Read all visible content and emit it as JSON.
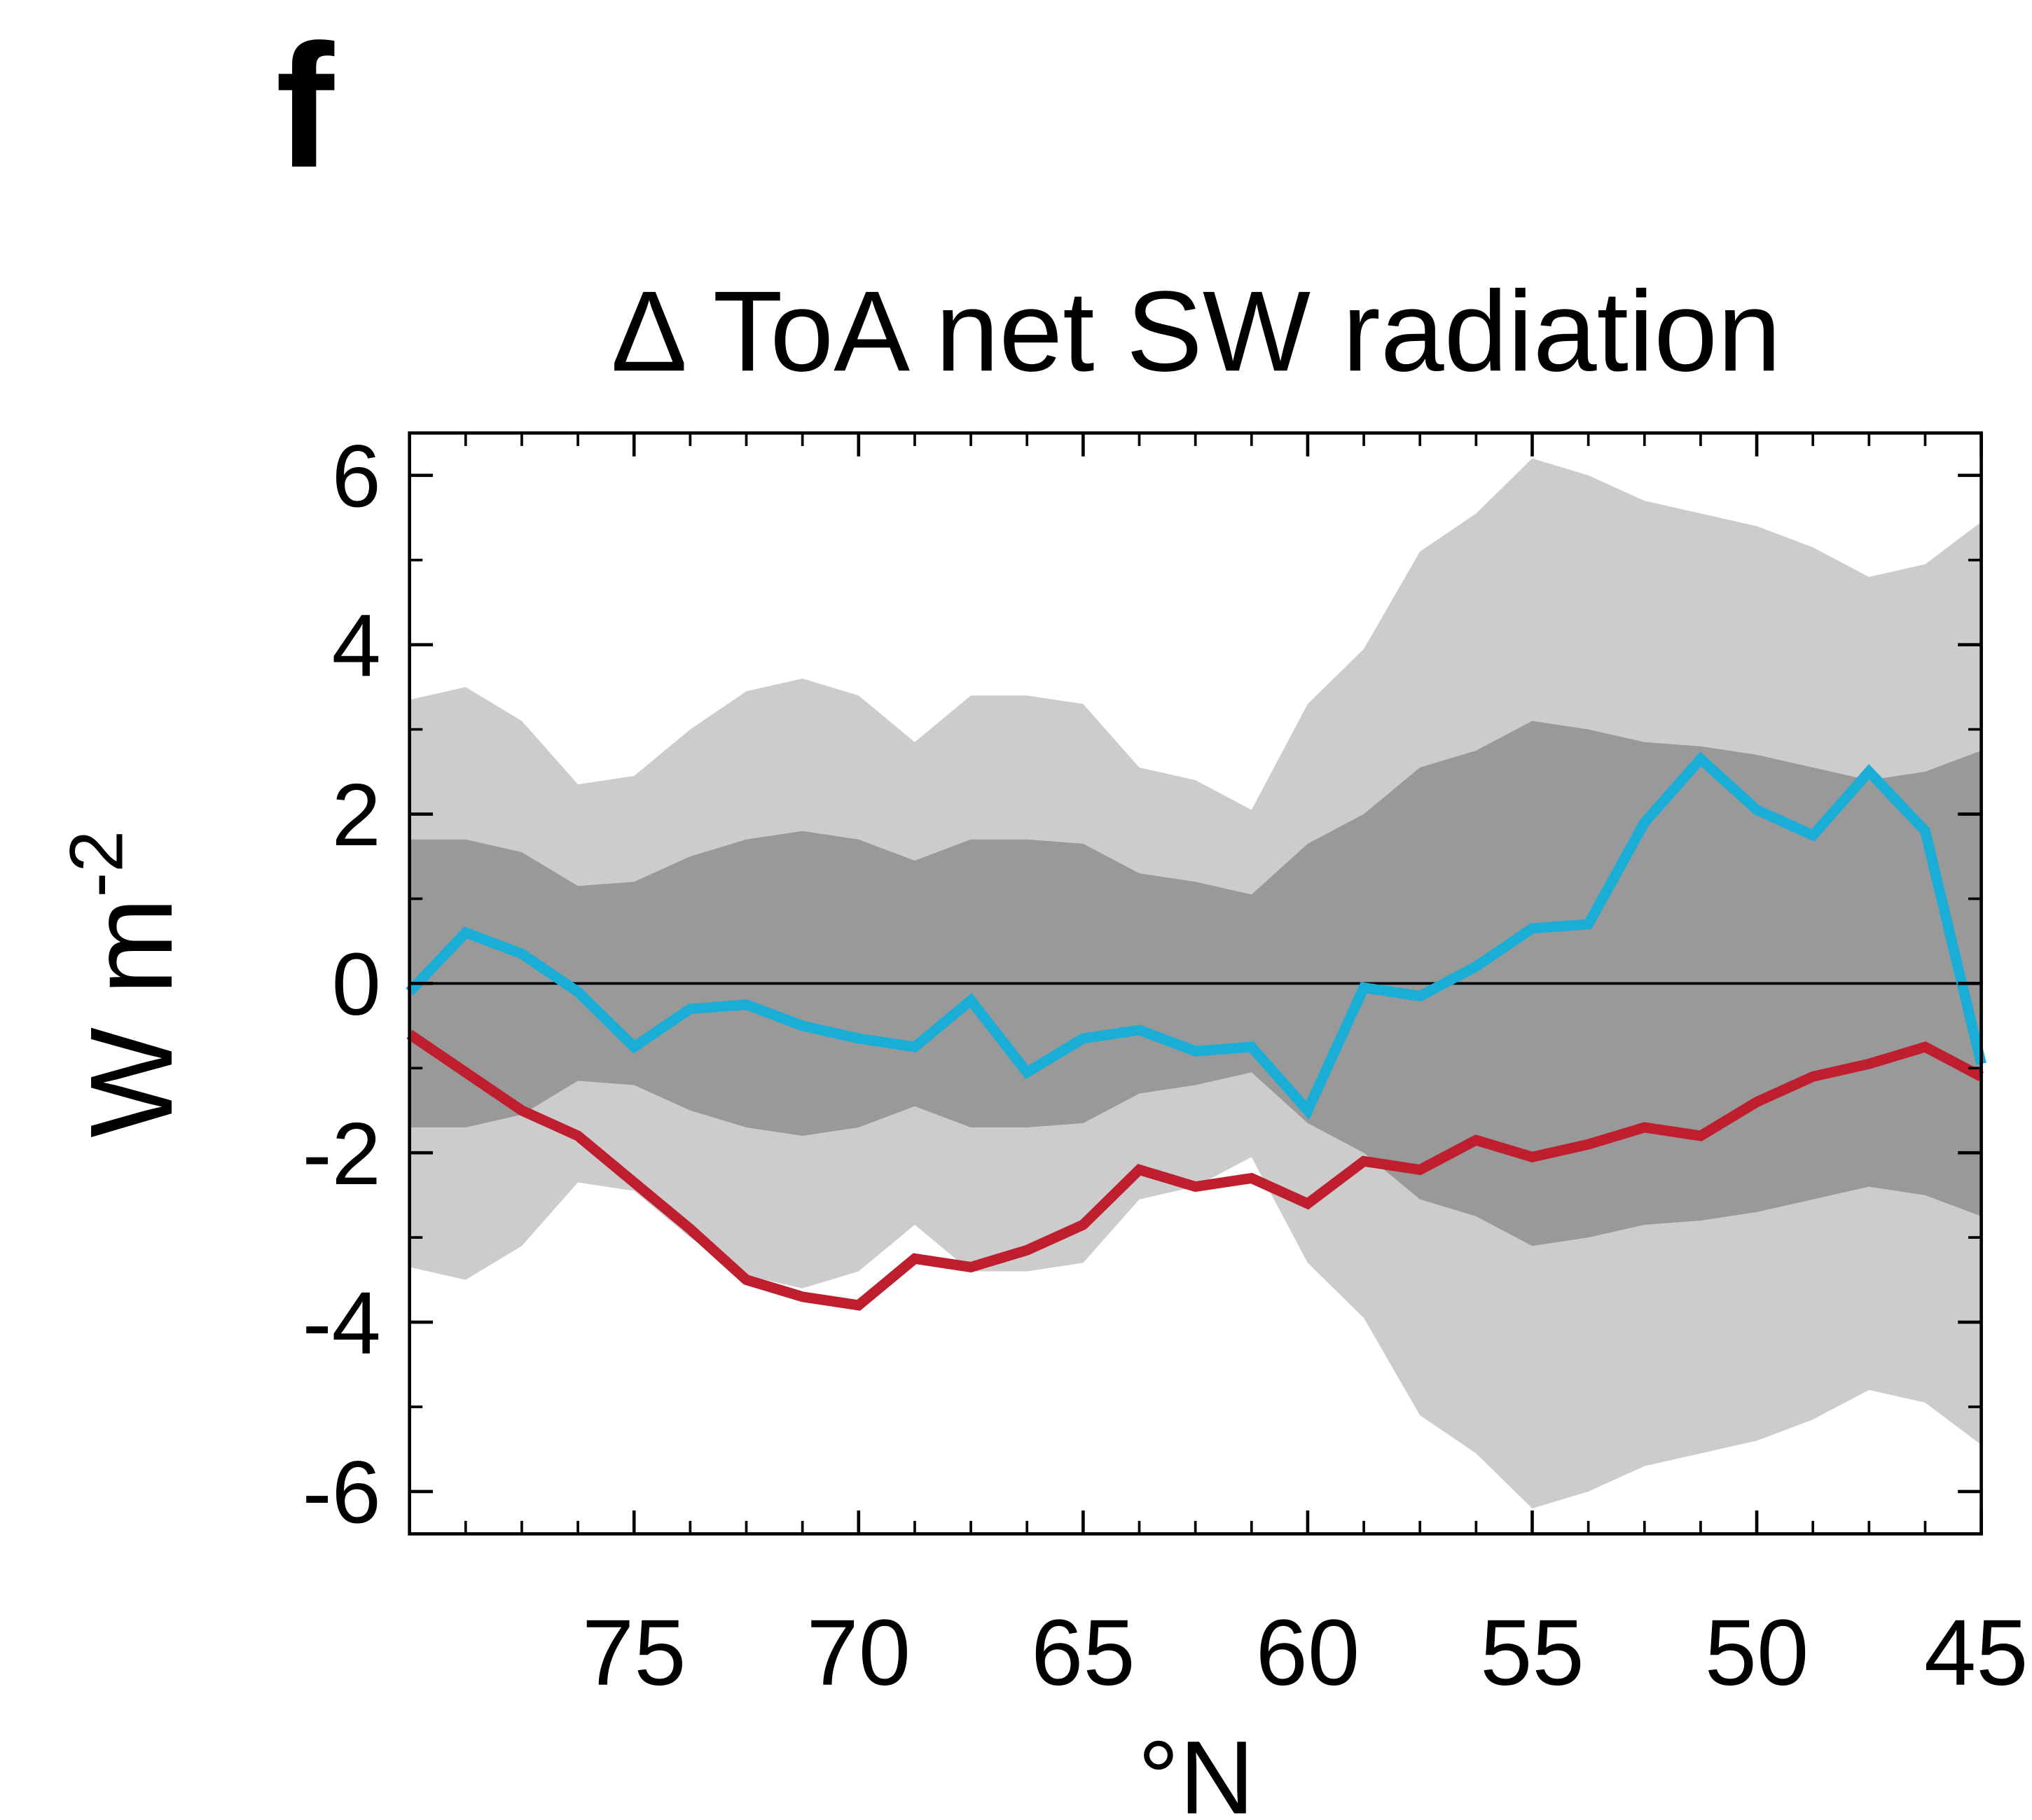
{
  "chart_data": {
    "type": "line",
    "panel_label": "f",
    "title": "Δ ToA net SW radiation",
    "ylabel": "W m",
    "ylabel_sup": "-2",
    "xlabel": "°N",
    "x": [
      80,
      78.75,
      77.5,
      76.25,
      75,
      73.75,
      72.5,
      71.25,
      70,
      68.75,
      67.5,
      66.25,
      65,
      63.75,
      62.5,
      61.25,
      60,
      58.75,
      57.5,
      56.25,
      55,
      53.75,
      52.5,
      51.25,
      50,
      48.75,
      47.5,
      46.25,
      45
    ],
    "xlim": [
      80,
      45
    ],
    "xticks": [
      75,
      70,
      65,
      60,
      55,
      50,
      45
    ],
    "ylim": [
      -6.5,
      6.5
    ],
    "yticks": [
      6,
      4,
      2,
      0,
      -2,
      -4,
      -6
    ],
    "yminorticks": [
      5,
      3,
      1,
      -1,
      -3,
      -5
    ],
    "hline": 0,
    "bands": [
      {
        "color": "#cccccc",
        "upper": [
          3.35,
          3.5,
          3.1,
          2.35,
          2.45,
          3.0,
          3.45,
          3.6,
          3.4,
          2.85,
          3.4,
          3.4,
          3.3,
          2.55,
          2.4,
          2.05,
          3.3,
          3.95,
          5.1,
          5.55,
          6.2,
          6.0,
          5.7,
          5.55,
          5.4,
          5.15,
          4.8,
          4.95,
          5.45
        ],
        "lower": [
          -3.35,
          -3.5,
          -3.1,
          -2.35,
          -2.45,
          -3.0,
          -3.45,
          -3.6,
          -3.4,
          -2.85,
          -3.4,
          -3.4,
          -3.3,
          -2.55,
          -2.4,
          -2.05,
          -3.3,
          -3.95,
          -5.1,
          -5.55,
          -6.2,
          -6.0,
          -5.7,
          -5.55,
          -5.4,
          -5.15,
          -4.8,
          -4.95,
          -5.45
        ]
      },
      {
        "color": "#999999",
        "upper": [
          1.7,
          1.7,
          1.55,
          1.15,
          1.2,
          1.5,
          1.7,
          1.8,
          1.7,
          1.45,
          1.7,
          1.7,
          1.65,
          1.3,
          1.2,
          1.05,
          1.65,
          2.0,
          2.55,
          2.75,
          3.1,
          3.0,
          2.85,
          2.8,
          2.7,
          2.55,
          2.4,
          2.5,
          2.75
        ],
        "lower": [
          -1.7,
          -1.7,
          -1.55,
          -1.15,
          -1.2,
          -1.5,
          -1.7,
          -1.8,
          -1.7,
          -1.45,
          -1.7,
          -1.7,
          -1.65,
          -1.3,
          -1.2,
          -1.05,
          -1.65,
          -2.0,
          -2.55,
          -2.75,
          -3.1,
          -3.0,
          -2.85,
          -2.8,
          -2.7,
          -2.55,
          -2.4,
          -2.5,
          -2.75
        ]
      }
    ],
    "series": [
      {
        "color": "#1aaed6",
        "values": [
          -0.1,
          0.6,
          0.35,
          -0.1,
          -0.75,
          -0.3,
          -0.25,
          -0.5,
          -0.65,
          -0.75,
          -0.2,
          -1.05,
          -0.65,
          -0.55,
          -0.8,
          -0.75,
          -1.5,
          -0.05,
          -0.15,
          0.2,
          0.65,
          0.7,
          1.9,
          2.65,
          2.05,
          1.75,
          2.5,
          1.8,
          -0.95
        ]
      },
      {
        "color": "#be1e2d",
        "values": [
          -0.6,
          -1.05,
          -1.5,
          -1.8,
          -2.35,
          -2.9,
          -3.5,
          -3.7,
          -3.8,
          -3.25,
          -3.35,
          -3.15,
          -2.85,
          -2.2,
          -2.4,
          -2.3,
          -2.6,
          -2.1,
          -2.2,
          -1.85,
          -2.05,
          -1.9,
          -1.7,
          -1.8,
          -1.4,
          -1.1,
          -0.95,
          -0.75,
          -1.1
        ]
      }
    ]
  }
}
